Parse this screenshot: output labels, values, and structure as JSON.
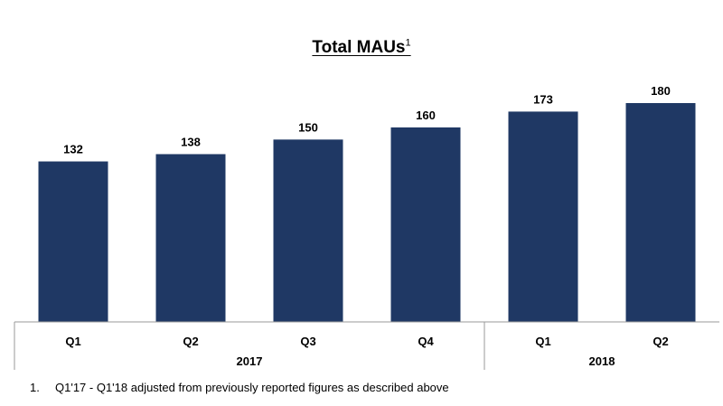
{
  "chart_data": {
    "type": "bar",
    "title": "Total MAUs",
    "title_superscript": "1",
    "categories": [
      "Q1",
      "Q2",
      "Q3",
      "Q4",
      "Q1",
      "Q2"
    ],
    "groups": [
      {
        "label": "2017",
        "count": 4
      },
      {
        "label": "2018",
        "count": 2
      }
    ],
    "values": [
      132,
      138,
      150,
      160,
      173,
      180
    ],
    "data_labels": [
      "132",
      "138",
      "150",
      "160",
      "173",
      "180"
    ],
    "ylim": [
      0,
      200
    ],
    "bar_color": "#1f3864",
    "grid": false,
    "legend": "none"
  },
  "footnote": {
    "number": "1.",
    "text": "Q1'17 - Q1'18 adjusted from previously reported figures as described above"
  }
}
